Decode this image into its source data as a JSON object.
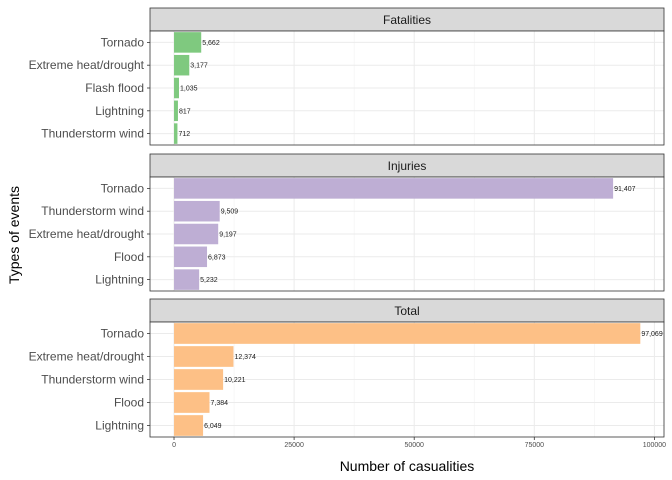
{
  "chart_data": {
    "type": "bar",
    "orientation": "horizontal",
    "xlabel": "Number of casualities",
    "ylabel": "Types of events",
    "xlim": [
      -5000,
      102000
    ],
    "xticks": [
      0,
      25000,
      50000,
      75000,
      100000
    ],
    "xtick_labels": [
      "0",
      "25000",
      "50000",
      "75000",
      "100000"
    ],
    "grid": true,
    "facets": [
      {
        "title": "Fatalities",
        "color": "#7fc97f",
        "categories": [
          "Tornado",
          "Extreme heat/drought",
          "Flash flood",
          "Lightning",
          "Thunderstorm wind"
        ],
        "values": [
          5662,
          3177,
          1035,
          817,
          712
        ],
        "labels": [
          "5,662",
          "3,177",
          "1,035",
          "817",
          "712"
        ]
      },
      {
        "title": "Injuries",
        "color": "#beaed4",
        "categories": [
          "Tornado",
          "Thunderstorm wind",
          "Extreme heat/drought",
          "Flood",
          "Lightning"
        ],
        "values": [
          91407,
          9509,
          9197,
          6873,
          5232
        ],
        "labels": [
          "91,407",
          "9,509",
          "9,197",
          "6,873",
          "5,232"
        ]
      },
      {
        "title": "Total",
        "color": "#fdc086",
        "categories": [
          "Tornado",
          "Extreme heat/drought",
          "Thunderstorm wind",
          "Flood",
          "Lightning"
        ],
        "values": [
          97069,
          12374,
          10221,
          7384,
          6049
        ],
        "labels": [
          "97,069",
          "12,374",
          "10,221",
          "7,384",
          "6,049"
        ]
      }
    ]
  }
}
